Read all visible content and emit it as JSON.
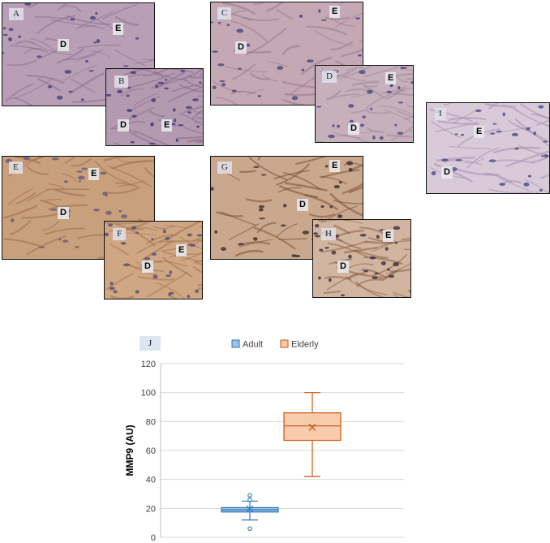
{
  "panels": [
    {
      "id": "A",
      "label": "A",
      "tags": [
        "D",
        "E"
      ],
      "color_base": "#b99fb6",
      "color_fiber": "#8f6f8f",
      "color_nuclei": "#4a3f7a"
    },
    {
      "id": "B",
      "label": "B",
      "tags": [
        "D",
        "E"
      ],
      "color_base": "#b49ab0",
      "color_fiber": "#8a6a88",
      "color_nuclei": "#433a72"
    },
    {
      "id": "C",
      "label": "C",
      "tags": [
        "D",
        "E"
      ],
      "color_base": "#c4a8b4",
      "color_fiber": "#9a7888",
      "color_nuclei": "#4d4478"
    },
    {
      "id": "D2",
      "label": "D",
      "tags": [
        "E",
        "D"
      ],
      "color_base": "#c6b0bc",
      "color_fiber": "#a08898",
      "color_nuclei": "#51477c"
    },
    {
      "id": "E2",
      "label": "E",
      "tags": [
        "E",
        "D"
      ],
      "color_base": "#c9a07c",
      "color_fiber": "#9c6e4a",
      "color_nuclei": "#6a5a7a"
    },
    {
      "id": "F",
      "label": "F",
      "tags": [
        "D",
        "E"
      ],
      "color_base": "#cfa783",
      "color_fiber": "#a47552",
      "color_nuclei": "#5d4f73"
    },
    {
      "id": "G",
      "label": "G",
      "tags": [
        "E",
        "D"
      ],
      "color_base": "#c9a88e",
      "color_fiber": "#7a4e34",
      "color_nuclei": "#3e2c2a"
    },
    {
      "id": "H",
      "label": "H",
      "tags": [
        "E",
        "D"
      ],
      "color_base": "#d2b5a0",
      "color_fiber": "#8a5e44",
      "color_nuclei": "#3f3040"
    },
    {
      "id": "I",
      "label": "I",
      "tags": [
        "E",
        "D"
      ],
      "color_base": "#d8cad8",
      "color_fiber": "#a58fb0",
      "color_nuclei": "#4a4a8a"
    }
  ],
  "panel_j_label": "J",
  "chart_data": {
    "type": "box",
    "ylabel": "MMP9 (AU)",
    "xlabel": "",
    "ylim": [
      0,
      120
    ],
    "yticks": [
      0,
      20,
      40,
      60,
      80,
      100,
      120
    ],
    "grid": true,
    "legend_position": "top",
    "series": [
      {
        "name": "Adult",
        "color": "#9dc3e6",
        "stroke": "#2e75b6",
        "min": 12,
        "q1": 17.5,
        "median": 19,
        "q3": 20.5,
        "max": 25,
        "mean": 19.5,
        "outliers": [
          6,
          26,
          29
        ]
      },
      {
        "name": "Elderly",
        "color": "#f8cbad",
        "stroke": "#c55a11",
        "min": 42,
        "q1": 67,
        "median": 77,
        "q3": 86,
        "max": 100,
        "mean": 76,
        "outliers": []
      }
    ]
  }
}
